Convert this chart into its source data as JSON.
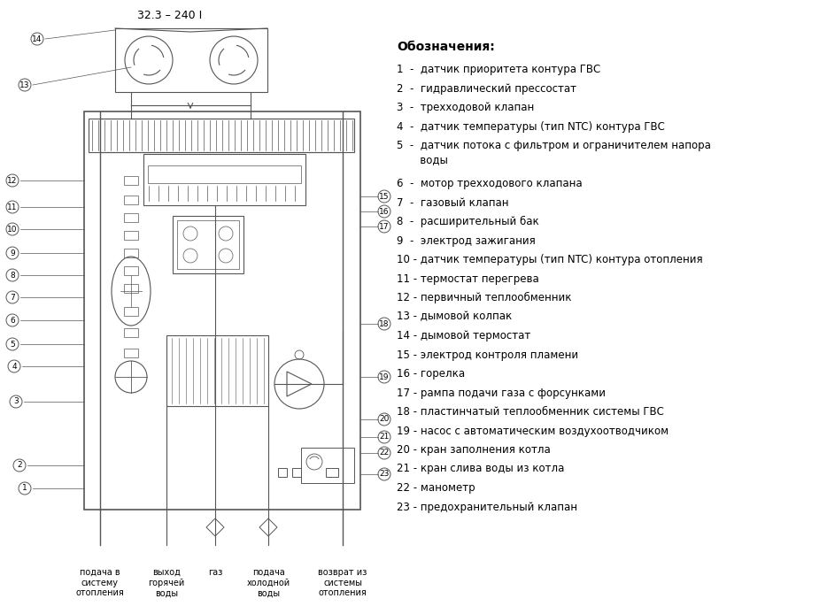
{
  "title": "32.3 – 240 I",
  "legend_header": "Обозначения:",
  "legend_items": [
    "1  -  датчик приоритета контура ГВС",
    "2  -  гидравлический прессостат",
    "3  -  трехходовой клапан",
    "4  -  датчик температуры (тип NTC) контура ГВС",
    "5  -  датчик потока с фильтром и ограничителем напора\n       воды",
    "6  -  мотор трехходового клапана",
    "7  -  газовый клапан",
    "8  -  расширительный бак",
    "9  -  электрод зажигания",
    "10 - датчик температуры (тип NTC) контура отопления",
    "11 - термостат перегрева",
    "12 - первичный теплообменник",
    "13 - дымовой колпак",
    "14 - дымовой термостат",
    "15 - электрод контроля пламени",
    "16 - горелка",
    "17 - рампа подачи газа с форсунками",
    "18 - пластинчатый теплообменник системы ГВС",
    "19 - насос с автоматическим воздухоотводчиком",
    "20 - кран заполнения котла",
    "21 - кран слива воды из котла",
    "22 - манометр",
    "23 - предохранительный клапан"
  ],
  "bottom_labels": [
    "подача в\nсистему\nотопления",
    "выход\nгорячей\nводы",
    "газ",
    "подача\nхолодной\nводы",
    "возврат из\nсистемы\nотопления"
  ],
  "bg_color": "#ffffff",
  "text_color": "#000000",
  "diagram_color": "#555555",
  "font_size_title": 9,
  "font_size_legend": 8.5,
  "font_size_legend_header": 10
}
